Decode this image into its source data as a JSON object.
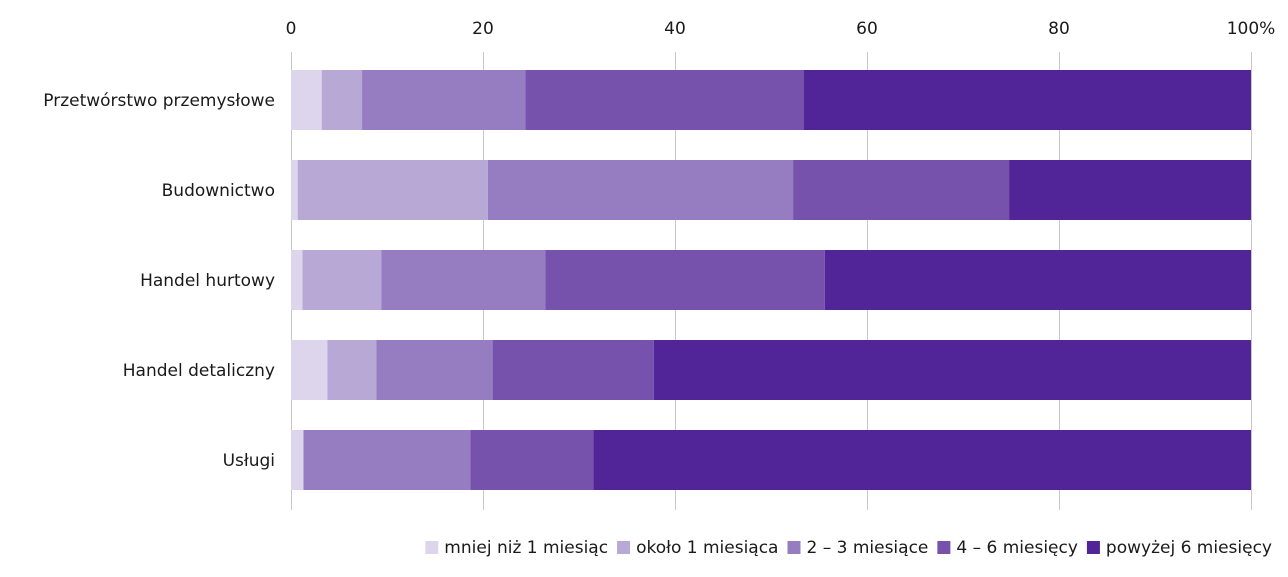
{
  "chart_data": {
    "type": "bar",
    "orientation": "horizontal",
    "stacked": "percent",
    "title": "",
    "xlabel": "",
    "ylabel": "",
    "xlim": [
      0,
      100
    ],
    "x_ticks": [
      "0",
      "20",
      "40",
      "60",
      "80",
      "100%"
    ],
    "x_tick_values": [
      0,
      20,
      40,
      60,
      80,
      100
    ],
    "categories": [
      "Przetwórstwo przemysłowe",
      "Budownictwo",
      "Handel hurtowy",
      "Handel detaliczny",
      "Usługi"
    ],
    "series": [
      {
        "name": "mniej niż 1 miesiąc",
        "color": "#ddd5ec",
        "values": [
          3.2,
          0.7,
          1.2,
          3.8,
          1.3
        ]
      },
      {
        "name": "około 1 miesiąca",
        "color": "#b8a8d6",
        "values": [
          4.2,
          19.8,
          8.2,
          5.1,
          0.0
        ]
      },
      {
        "name": "2  – 3 miesiące",
        "color": "#967dc2",
        "values": [
          17.0,
          31.8,
          17.1,
          12.1,
          17.4
        ]
      },
      {
        "name": "4 – 6 miesięcy",
        "color": "#7652ad",
        "values": [
          29.0,
          22.5,
          29.1,
          16.8,
          12.8
        ]
      },
      {
        "name": "powyżej 6 miesięcy",
        "color": "#512497",
        "values": [
          46.6,
          25.2,
          44.4,
          62.2,
          68.5
        ]
      }
    ],
    "grid": true,
    "legend_position": "bottom"
  }
}
